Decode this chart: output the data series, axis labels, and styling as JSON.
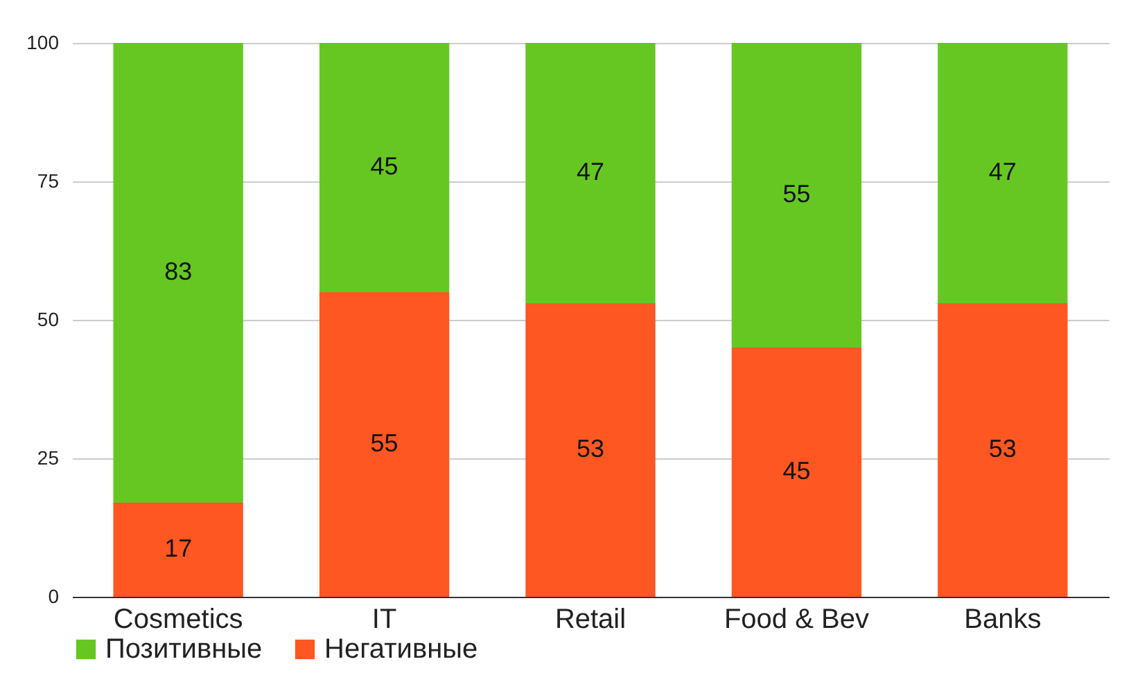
{
  "chart_data": {
    "type": "bar",
    "stacked": true,
    "categories": [
      "Cosmetics",
      "IT",
      "Retail",
      "Food & Bev",
      "Banks"
    ],
    "series": [
      {
        "name": "Негативные",
        "color": "#ff5722",
        "values": [
          17,
          55,
          53,
          45,
          53
        ]
      },
      {
        "name": "Позитивные",
        "color": "#66c723",
        "values": [
          83,
          45,
          47,
          55,
          47
        ]
      }
    ],
    "ylim": [
      0,
      100
    ],
    "yticks": [
      0,
      25,
      50,
      75,
      100
    ],
    "grid": "y",
    "legend": "bottom",
    "data_labels": true
  }
}
